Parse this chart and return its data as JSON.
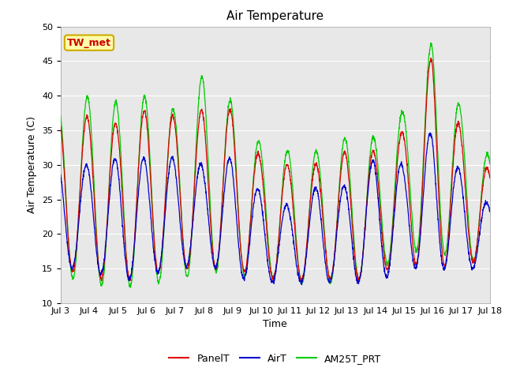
{
  "title": "Air Temperature",
  "xlabel": "Time",
  "ylabel": "Air Temperature (C)",
  "ylim": [
    10,
    50
  ],
  "background_color": "#ffffff",
  "plot_bg_color": "#e8e8e8",
  "annotation_text": "TW_met",
  "annotation_bg": "#ffffaa",
  "annotation_fg": "#cc0000",
  "annotation_edge": "#ccaa00",
  "line_colors": {
    "PanelT": "#dd0000",
    "AirT": "#0000cc",
    "AM25T_PRT": "#00cc00"
  },
  "x_tick_labels": [
    "Jul 3",
    "Jul 4",
    "Jul 5",
    "Jul 6",
    "Jul 7",
    "Jul 8",
    "Jul 9",
    "Jul 10",
    "Jul 11",
    "Jul 12",
    "Jul 13",
    "Jul 14",
    "Jul 15",
    "Jul 16",
    "Jul 17",
    "Jul 18"
  ],
  "x_tick_positions": [
    3,
    4,
    5,
    6,
    7,
    8,
    9,
    10,
    11,
    12,
    13,
    14,
    15,
    16,
    17,
    18
  ],
  "grid_color": "#ffffff",
  "title_fontsize": 11,
  "axis_fontsize": 9,
  "tick_fontsize": 8,
  "legend_fontsize": 9,
  "figsize": [
    6.4,
    4.8
  ],
  "dpi": 100
}
